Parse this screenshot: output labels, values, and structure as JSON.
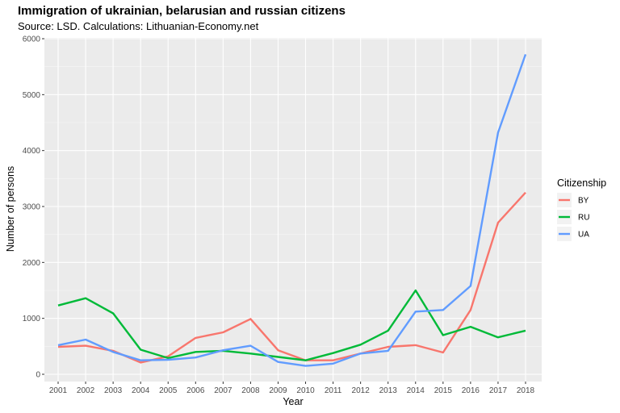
{
  "chart_data": {
    "type": "line",
    "title": "Immigration of ukrainian, belarusian and russian citizens",
    "subtitle": "Source: LSD. Calculations: Lithuanian-Economy.net",
    "xlabel": "Year",
    "ylabel": "Number of persons",
    "x": [
      "2001",
      "2002",
      "2003",
      "2004",
      "2005",
      "2006",
      "2007",
      "2008",
      "2009",
      "2010",
      "2011",
      "2012",
      "2013",
      "2014",
      "2015",
      "2016",
      "2017",
      "2018"
    ],
    "ylim": [
      0,
      6000
    ],
    "yticks": [
      "0",
      "1000",
      "2000",
      "3000",
      "4000",
      "5000",
      "6000"
    ],
    "grid": true,
    "legend": {
      "title": "Citizenship",
      "position": "right"
    },
    "series": [
      {
        "name": "BY",
        "color": "#F8766D",
        "values": [
          490,
          510,
          420,
          210,
          320,
          650,
          750,
          990,
          430,
          250,
          250,
          370,
          490,
          520,
          390,
          1150,
          2710,
          3250
        ]
      },
      {
        "name": "RU",
        "color": "#00BA38",
        "values": [
          1230,
          1360,
          1090,
          440,
          290,
          400,
          420,
          370,
          310,
          250,
          380,
          530,
          780,
          1500,
          700,
          850,
          660,
          780
        ]
      },
      {
        "name": "UA",
        "color": "#619CFF",
        "values": [
          520,
          620,
          400,
          250,
          260,
          300,
          430,
          510,
          220,
          150,
          190,
          370,
          420,
          1120,
          1150,
          1580,
          4320,
          5720
        ]
      }
    ]
  }
}
